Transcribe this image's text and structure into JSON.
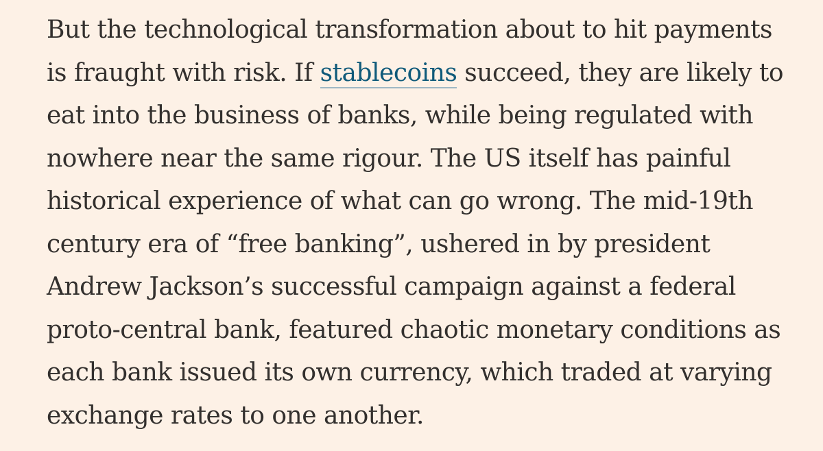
{
  "article": {
    "lines": [
      {
        "text": "But the technological transformation about to hit payments"
      },
      {
        "before": "is fraught with risk. If ",
        "link": "stablecoins",
        "after": " succeed, they are likely to"
      },
      {
        "text": "eat into the business of banks, while being regulated with"
      },
      {
        "text": "nowhere near the same rigour. The US itself has painful"
      },
      {
        "text": "historical experience of what can go wrong. The mid-19th"
      },
      {
        "text": "century era of “free banking”, ushered in by president"
      },
      {
        "text": "Andrew Jackson’s successful campaign against a federal"
      },
      {
        "text": "proto-central bank, featured chaotic monetary conditions as"
      },
      {
        "text": "each bank issued its own currency, which traded at varying"
      },
      {
        "text": "exchange rates to one another."
      }
    ]
  },
  "colors": {
    "background": "#fdf1e6",
    "text": "#33302e",
    "link": "#0f5a7a",
    "link_underline": "#9fb8c4"
  }
}
